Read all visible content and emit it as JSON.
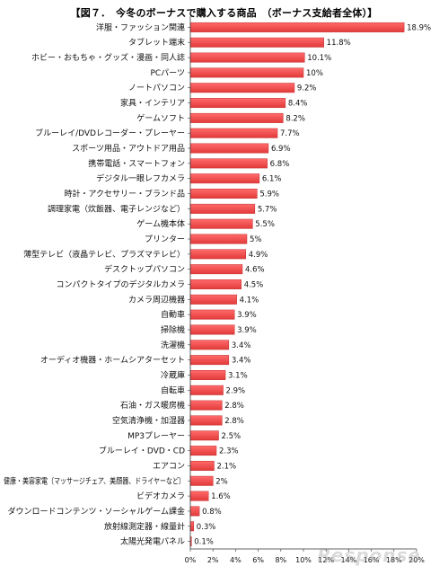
{
  "chart_data": {
    "type": "bar",
    "orientation": "horizontal",
    "title": "【図７．　今冬のボーナスで購入する商品　（ボーナス支給者全体）】",
    "categories": [
      "洋服・ファッション関連",
      "タブレット端末",
      "ホビー・おもちゃ・グッズ・漫画・同人誌",
      "PCパーツ",
      "ノートパソコン",
      "家具・インテリア",
      "ゲームソフト",
      "ブルーレイ/DVDレコーダー・プレーヤー",
      "スポーツ用品・アウトドア用品",
      "携帯電話・スマートフォン",
      "デジタル一眼レフカメラ",
      "時計・アクセサリー・ブランド品",
      "調理家電（炊飯器、電子レンジなど）",
      "ゲーム機本体",
      "プリンター",
      "薄型テレビ（液晶テレビ、プラズマテレビ）",
      "デスクトップパソコン",
      "コンパクトタイプのデジタルカメラ",
      "カメラ周辺機器",
      "自動車",
      "掃除機",
      "洗濯機",
      "オーディオ機器・ホームシアターセット",
      "冷蔵庫",
      "自転車",
      "石油・ガス暖房機",
      "空気清浄機・加湿器",
      "MP3プレーヤー",
      "ブルーレイ・DVD・CD",
      "エアコン",
      "健康・美容家電（マッサージチェア、美顔器、ドライヤーなど）",
      "ビデオカメラ",
      "ダウンロードコンテンツ・ソーシャルゲーム課金",
      "放射線測定器・線量計",
      "太陽光発電パネル"
    ],
    "values": [
      18.9,
      11.8,
      10.1,
      10,
      9.2,
      8.4,
      8.2,
      7.7,
      6.9,
      6.8,
      6.1,
      5.9,
      5.7,
      5.5,
      5,
      4.9,
      4.6,
      4.5,
      4.1,
      3.9,
      3.9,
      3.4,
      3.4,
      3.1,
      2.9,
      2.8,
      2.8,
      2.5,
      2.3,
      2.1,
      2,
      1.6,
      0.8,
      0.3,
      0.1
    ],
    "value_labels": [
      "18.9%",
      "11.8%",
      "10.1%",
      "10%",
      "9.2%",
      "8.4%",
      "8.2%",
      "7.7%",
      "6.9%",
      "6.8%",
      "6.1%",
      "5.9%",
      "5.7%",
      "5.5%",
      "5%",
      "4.9%",
      "4.6%",
      "4.5%",
      "4.1%",
      "3.9%",
      "3.9%",
      "3.4%",
      "3.4%",
      "3.1%",
      "2.9%",
      "2.8%",
      "2.8%",
      "2.5%",
      "2.3%",
      "2.1%",
      "2%",
      "1.6%",
      "0.8%",
      "0.3%",
      "0.1%"
    ],
    "xticks": [
      "0%",
      "2%",
      "4%",
      "6%",
      "8%",
      "10%",
      "12%",
      "14%",
      "16%",
      "18%",
      "20%"
    ],
    "xlim": [
      0,
      20
    ],
    "xlabel": "",
    "ylabel": "",
    "grid": false,
    "legend": "none",
    "bar_color": "#f04848"
  }
}
